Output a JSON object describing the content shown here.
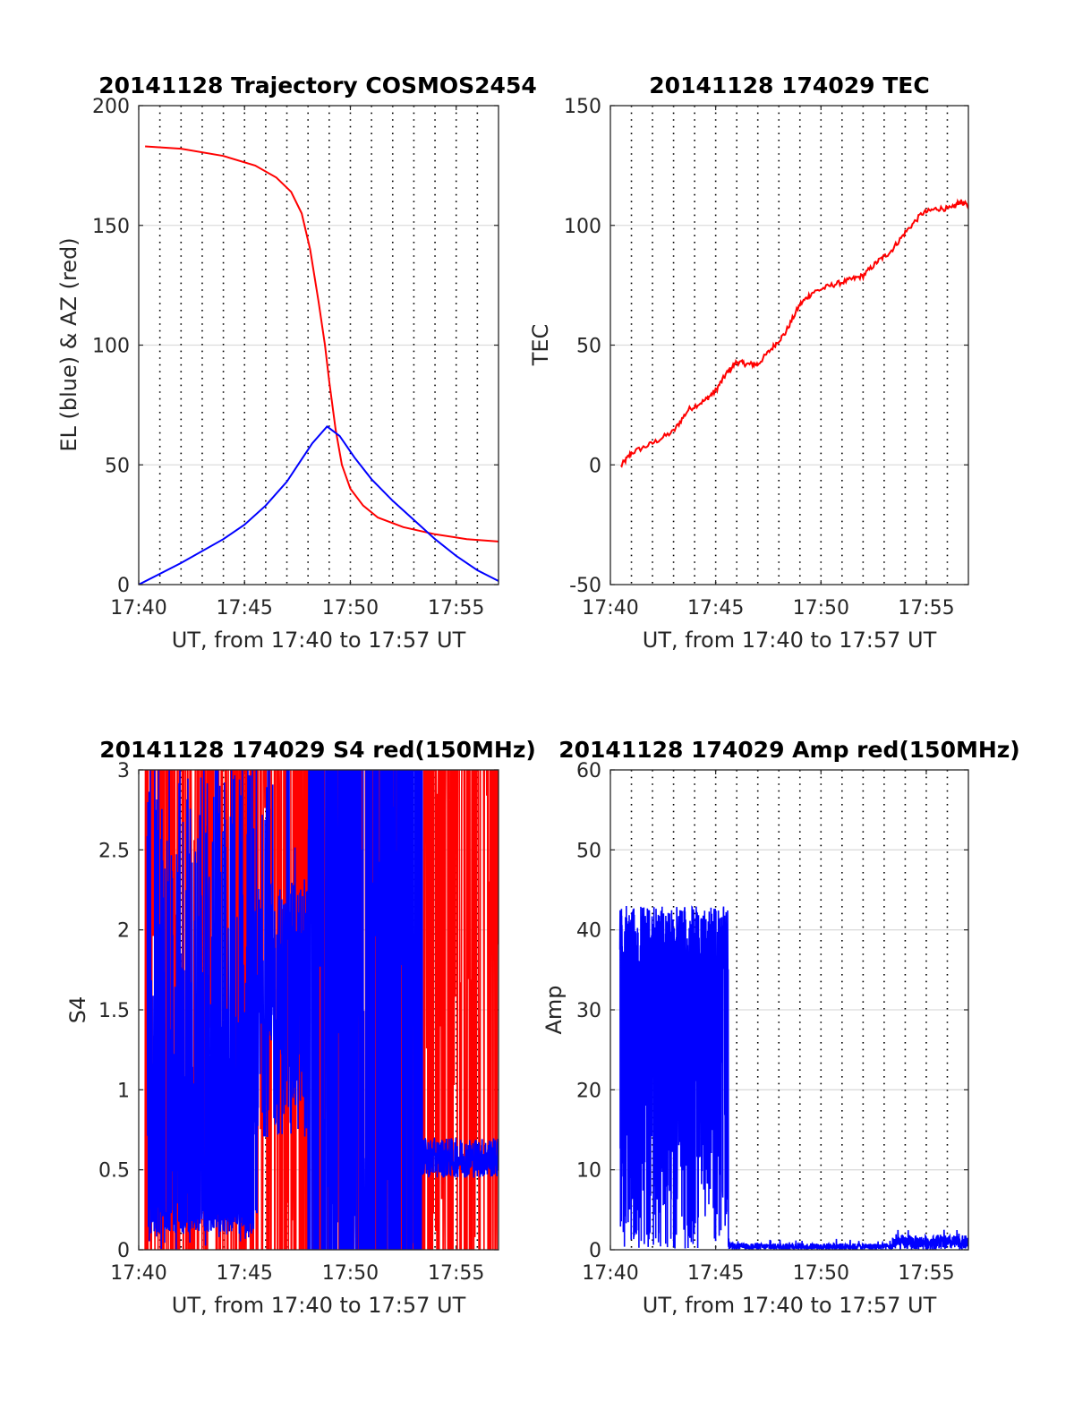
{
  "chart_data": [
    {
      "id": "trajectory",
      "type": "line",
      "title": "20141128 Trajectory COSMOS2454",
      "xlabel": "UT, from 17:40 to 17:57 UT",
      "ylabel": "EL (blue) & AZ (red)",
      "xlim": [
        0,
        17
      ],
      "ylim": [
        0,
        200
      ],
      "x_tick_labels": [
        "17:40",
        "17:45",
        "17:50",
        "17:55"
      ],
      "y_tick_labels": [
        "0",
        "50",
        "100",
        "150",
        "200"
      ],
      "grid": "horizontal solid, vertical dotted every minute",
      "series": [
        {
          "color": "#ff0000",
          "x_minutes": [
            0.3,
            2,
            4,
            5.5,
            6.5,
            7.2,
            7.7,
            8.1,
            8.5,
            8.8,
            9.0,
            9.3,
            9.6,
            10.0,
            10.6,
            11.3,
            12.5,
            14,
            15.5,
            17
          ],
          "values": [
            183,
            182,
            179,
            175,
            170,
            164,
            155,
            140,
            118,
            100,
            85,
            65,
            50,
            40,
            33,
            28,
            24,
            21,
            19,
            18
          ]
        },
        {
          "color": "#0000ff",
          "x_minutes": [
            0,
            2,
            4,
            5,
            6,
            7,
            7.6,
            8.2,
            8.9,
            9.5,
            10.2,
            11,
            12,
            13,
            14,
            15,
            16,
            17
          ],
          "values": [
            0,
            9,
            19,
            25,
            33,
            43,
            51,
            59,
            66,
            62,
            53,
            44,
            35,
            27,
            19,
            12,
            6,
            1.5
          ]
        }
      ]
    },
    {
      "id": "tec",
      "type": "line",
      "title": "20141128 174029 TEC",
      "xlabel": "UT, from 17:40 to 17:57 UT",
      "ylabel": "TEC",
      "xlim": [
        0,
        17
      ],
      "ylim": [
        -50,
        150
      ],
      "x_tick_labels": [
        "17:40",
        "17:45",
        "17:50",
        "17:55"
      ],
      "y_tick_labels": [
        "-50",
        "0",
        "50",
        "100",
        "150"
      ],
      "grid": "horizontal solid, vertical dotted every minute",
      "series": [
        {
          "color": "#ff0000",
          "x_minutes": [
            0.5,
            1,
            2,
            3,
            3.7,
            4.5,
            5,
            5.5,
            6,
            6.5,
            7,
            7.7,
            8.3,
            9,
            9.6,
            10.5,
            11.3,
            12,
            12.7,
            13.3,
            14,
            14.8,
            15.5,
            16.2,
            16.6,
            17
          ],
          "values": [
            -0.5,
            5,
            9,
            14,
            23,
            27,
            31,
            38,
            43,
            42,
            42,
            49,
            55,
            67,
            72,
            75,
            77,
            79,
            85,
            89,
            97,
            105,
            107,
            107,
            110,
            108
          ]
        }
      ]
    },
    {
      "id": "s4",
      "type": "line",
      "title": "20141128 174029 S4 red(150MHz)",
      "xlabel": "UT, from 17:40 to 17:57 UT",
      "ylabel": "S4",
      "xlim": [
        0,
        17
      ],
      "ylim": [
        0,
        3
      ],
      "x_tick_labels": [
        "17:40",
        "17:45",
        "17:50",
        "17:55"
      ],
      "y_tick_labels": [
        "0",
        "0.5",
        "1",
        "1.5",
        "2",
        "2.5",
        "3"
      ],
      "grid": "horizontal solid, vertical dotted every minute",
      "series": [
        {
          "color": "#ff0000",
          "description_level": "dense noise, mostly saturated between 0 and 3",
          "mean": 1.5
        },
        {
          "color": "#0000ff",
          "description_level": "dense noise; 0.1-3 until 17:53:30, then about 0.55",
          "mean": 1.2
        }
      ]
    },
    {
      "id": "amp",
      "type": "line",
      "title": "20141128 174029 Amp red(150MHz)",
      "xlabel": "UT, from 17:40 to 17:57 UT",
      "ylabel": "Amp",
      "xlim": [
        0,
        17
      ],
      "ylim": [
        0,
        60
      ],
      "x_tick_labels": [
        "17:40",
        "17:45",
        "17:50",
        "17:55"
      ],
      "y_tick_labels": [
        "0",
        "10",
        "20",
        "30",
        "40",
        "50",
        "60"
      ],
      "grid": "horizontal solid, vertical dotted every minute",
      "series": [
        {
          "color": "#0000ff",
          "segments": [
            {
              "x_range_minutes": [
                0.45,
                5.6
              ],
              "min": 0,
              "max": 43,
              "typical_top": 38
            },
            {
              "x_range_minutes": [
                5.6,
                13.4
              ],
              "min": 0,
              "max": 1.5,
              "typical_top": 0.8
            },
            {
              "x_range_minutes": [
                13.4,
                17
              ],
              "min": 0,
              "max": 2.5,
              "typical_top": 1.8
            }
          ]
        }
      ]
    }
  ]
}
